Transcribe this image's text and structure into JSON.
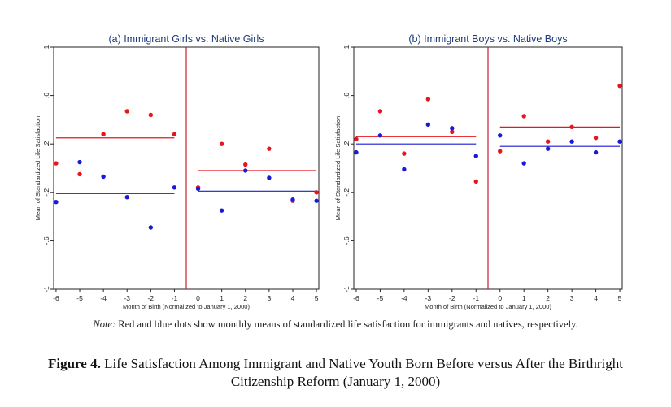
{
  "chart_data": [
    {
      "type": "scatter",
      "title": "(a) Immigrant Girls vs. Native Girls",
      "xlabel": "Month of Birth (Normalized to January 1, 2000)",
      "ylabel": "Mean of Standardized Life Satisfaction",
      "xlim": [
        -6.1,
        5.1
      ],
      "ylim": [
        -1.0,
        1.0
      ],
      "xticks": [
        -6,
        -5,
        -4,
        -3,
        -2,
        -1,
        0,
        1,
        2,
        3,
        4,
        5
      ],
      "yticks": [
        -1,
        -0.6,
        -0.2,
        0.2,
        0.6,
        1
      ],
      "ytick_labels": [
        "-1",
        "-.6",
        "-.2",
        ".2",
        ".6",
        "1"
      ],
      "cutoff_x": -0.5,
      "series": [
        {
          "color": "#e8141e",
          "x": [
            -6,
            -5,
            -4,
            -3,
            -2,
            -1,
            0,
            1,
            2,
            3,
            4,
            5
          ],
          "y": [
            0.04,
            -0.05,
            0.28,
            0.47,
            0.44,
            0.28,
            -0.16,
            0.2,
            0.03,
            0.16,
            -0.27,
            -0.2
          ]
        },
        {
          "color": "#1a1ad6",
          "x": [
            -6,
            -5,
            -4,
            -3,
            -2,
            -1,
            0,
            1,
            2,
            3,
            4,
            5
          ],
          "y": [
            -0.28,
            0.05,
            -0.07,
            -0.24,
            -0.49,
            -0.16,
            -0.17,
            -0.35,
            -0.02,
            -0.08,
            -0.26,
            -0.27
          ]
        }
      ],
      "fit_lines": [
        {
          "color": "#e8141e",
          "x": [
            -6,
            -1
          ],
          "y": [
            0.25,
            0.25
          ]
        },
        {
          "color": "#1a1ad6",
          "x": [
            -6,
            -1
          ],
          "y": [
            -0.21,
            -0.21
          ]
        },
        {
          "color": "#e8141e",
          "x": [
            0,
            5
          ],
          "y": [
            -0.02,
            -0.02
          ]
        },
        {
          "color": "#1a1ad6",
          "x": [
            0,
            5
          ],
          "y": [
            -0.19,
            -0.19
          ]
        }
      ]
    },
    {
      "type": "scatter",
      "title": "(b) Immigrant Boys vs. Native Boys",
      "xlabel": "Month of Birth (Normalized to January 1, 2000)",
      "ylabel": "Mean of Standardized Life Satisfaction",
      "xlim": [
        -6.1,
        5.1
      ],
      "ylim": [
        -1.0,
        1.0
      ],
      "xticks": [
        -6,
        -5,
        -4,
        -3,
        -2,
        -1,
        0,
        1,
        2,
        3,
        4,
        5
      ],
      "yticks": [
        -1,
        -0.6,
        -0.2,
        0.2,
        0.6,
        1
      ],
      "ytick_labels": [
        "-1",
        "-.6",
        "-.2",
        ".2",
        ".6",
        "1"
      ],
      "cutoff_x": -0.5,
      "series": [
        {
          "color": "#e8141e",
          "x": [
            -6,
            -5,
            -4,
            -3,
            -2,
            -1,
            0,
            1,
            2,
            3,
            4,
            5
          ],
          "y": [
            0.24,
            0.47,
            0.12,
            0.57,
            0.3,
            -0.11,
            0.14,
            0.43,
            0.22,
            0.34,
            0.25,
            0.68
          ]
        },
        {
          "color": "#1a1ad6",
          "x": [
            -6,
            -5,
            -4,
            -3,
            -2,
            -1,
            0,
            1,
            2,
            3,
            4,
            5
          ],
          "y": [
            0.13,
            0.27,
            -0.01,
            0.36,
            0.33,
            0.1,
            0.27,
            0.04,
            0.16,
            0.22,
            0.13,
            0.22
          ]
        }
      ],
      "fit_lines": [
        {
          "color": "#e8141e",
          "x": [
            -6,
            -1
          ],
          "y": [
            0.26,
            0.26
          ]
        },
        {
          "color": "#1a1ad6",
          "x": [
            -6,
            -1
          ],
          "y": [
            0.2,
            0.2
          ]
        },
        {
          "color": "#e8141e",
          "x": [
            0,
            5
          ],
          "y": [
            0.34,
            0.34
          ]
        },
        {
          "color": "#1a1ad6",
          "x": [
            0,
            5
          ],
          "y": [
            0.18,
            0.18
          ]
        }
      ]
    }
  ],
  "note": {
    "label": "Note:",
    "text": "Red and blue dots show monthly means of standardized life satisfaction for immigrants and natives, respectively."
  },
  "caption": {
    "label": "Figure 4.",
    "text": "Life Satisfaction Among Immigrant and Native Youth Born Before versus After the Birthright Citizenship Reform (January 1, 2000)"
  }
}
